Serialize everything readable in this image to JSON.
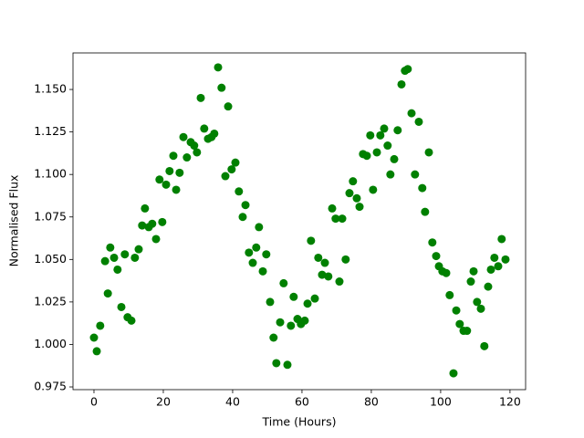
{
  "chart_data": {
    "type": "scatter",
    "x_label": "Time (Hours)",
    "y_label": "Normalised Flux",
    "color": "#008000",
    "xlim": [
      -6.05,
      124.5
    ],
    "ylim": [
      0.9734,
      1.1715
    ],
    "xticks": [
      0,
      20,
      40,
      60,
      80,
      100,
      120
    ],
    "yticks": [
      0.975,
      {
        "value": 1.0,
        "label": "1.000"
      },
      1.025,
      {
        "value": 1.05,
        "label": "1.050"
      },
      1.075,
      {
        "value": 1.1,
        "label": "1.100"
      },
      1.125,
      {
        "value": 1.15,
        "label": "1.150"
      }
    ],
    "x": [
      0,
      0.8,
      1.8,
      3.2,
      4,
      4.7,
      5.8,
      6.8,
      7.9,
      8.9,
      9.7,
      10.8,
      11.8,
      12.9,
      13.9,
      14.7,
      15.8,
      16.8,
      17.9,
      18.9,
      19.7,
      20.8,
      21.8,
      22.9,
      23.7,
      24.7,
      25.8,
      26.8,
      27.9,
      28.9,
      29.7,
      30.8,
      31.8,
      32.9,
      33.9,
      34.7,
      35.8,
      36.8,
      37.9,
      38.7,
      39.7,
      40.8,
      41.8,
      42.9,
      43.7,
      44.7,
      45.8,
      46.8,
      47.6,
      48.7,
      49.7,
      50.8,
      51.8,
      52.6,
      53.7,
      54.7,
      55.8,
      56.8,
      57.6,
      58.7,
      59.7,
      60.8,
      61.6,
      62.6,
      63.7,
      64.7,
      65.8,
      66.6,
      67.6,
      68.7,
      69.7,
      70.8,
      71.6,
      72.6,
      73.7,
      74.7,
      75.8,
      76.6,
      77.6,
      78.7,
      79.7,
      80.5,
      81.6,
      82.6,
      83.7,
      84.7,
      85.5,
      86.6,
      87.6,
      88.7,
      89.7,
      90.5,
      91.6,
      92.6,
      93.7,
      94.7,
      95.5,
      96.6,
      97.6,
      98.7,
      99.5,
      100.5,
      101.6,
      102.6,
      103.7,
      104.5,
      105.5,
      106.6,
      107.6,
      108.7,
      109.5,
      110.5,
      111.6,
      112.6,
      113.7,
      114.5,
      115.5,
      116.6,
      117.6,
      118.7
    ],
    "values": [
      1.004,
      0.996,
      1.011,
      1.049,
      1.03,
      1.057,
      1.051,
      1.044,
      1.022,
      1.053,
      1.016,
      1.014,
      1.051,
      1.056,
      1.07,
      1.08,
      1.069,
      1.071,
      1.062,
      1.097,
      1.072,
      1.094,
      1.102,
      1.111,
      1.091,
      1.101,
      1.122,
      1.11,
      1.119,
      1.117,
      1.113,
      1.145,
      1.127,
      1.121,
      1.122,
      1.124,
      1.163,
      1.151,
      1.099,
      1.14,
      1.103,
      1.107,
      1.09,
      1.075,
      1.082,
      1.054,
      1.048,
      1.057,
      1.069,
      1.043,
      1.053,
      1.025,
      1.004,
      0.989,
      1.013,
      1.036,
      0.988,
      1.011,
      1.028,
      1.015,
      1.012,
      1.014,
      1.024,
      1.061,
      1.027,
      1.051,
      1.041,
      1.048,
      1.04,
      1.08,
      1.074,
      1.037,
      1.074,
      1.05,
      1.089,
      1.096,
      1.086,
      1.081,
      1.112,
      1.111,
      1.123,
      1.091,
      1.113,
      1.123,
      1.127,
      1.117,
      1.1,
      1.109,
      1.126,
      1.153,
      1.161,
      1.162,
      1.136,
      1.1,
      1.131,
      1.092,
      1.078,
      1.113,
      1.06,
      1.052,
      1.046,
      1.043,
      1.042,
      1.029,
      0.983,
      1.02,
      1.012,
      1.008,
      1.008,
      1.037,
      1.043,
      1.025,
      1.021,
      0.999,
      1.034,
      1.044,
      1.051,
      1.046,
      1.062,
      1.05
    ]
  }
}
